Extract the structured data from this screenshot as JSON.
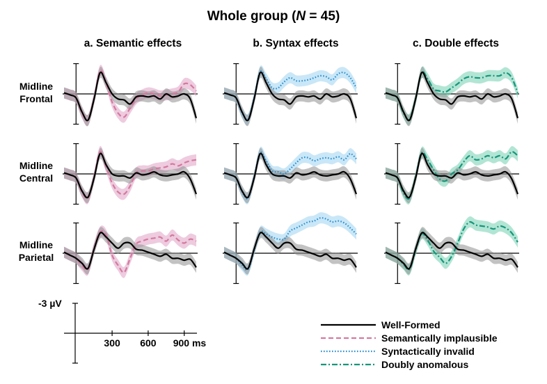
{
  "figure": {
    "title_main": "Whole group (",
    "title_italic": "N",
    "title_rest": " = 45)"
  },
  "chart_data": {
    "type": "line",
    "title": "Whole group (N = 45)",
    "x_unit": "ms",
    "y_scale_label": "-3 µV",
    "x_ticks": [
      "300",
      "600",
      "900 ms"
    ],
    "x_tick_values": [
      300,
      600,
      900
    ],
    "x_range": [
      -100,
      1200
    ],
    "y_range_uv": [
      -3,
      3
    ],
    "negative_up": true,
    "columns": [
      {
        "label": "a. Semantic effects",
        "condition": "semantic"
      },
      {
        "label": "b. Syntax effects",
        "condition": "syntax"
      },
      {
        "label": "c. Double effects",
        "condition": "double"
      }
    ],
    "rows": [
      {
        "label_line1": "Midline",
        "label_line2": "Frontal",
        "site": "frontal"
      },
      {
        "label_line1": "Midline",
        "label_line2": "Central",
        "site": "central"
      },
      {
        "label_line1": "Midline",
        "label_line2": "Parietal",
        "site": "parietal"
      }
    ],
    "legend": [
      {
        "label": "Well-Formed",
        "color": "#000000",
        "style": "solid"
      },
      {
        "label": "Semantically implausible",
        "color": "#d4799e",
        "style": "dashed"
      },
      {
        "label": "Syntactically invalid",
        "color": "#2a8fd0",
        "style": "dotted"
      },
      {
        "label": "Doubly anomalous",
        "color": "#16967a",
        "style": "dashdot"
      }
    ],
    "band_colors": {
      "wellformed": "#8f8f8f",
      "semantic": "#e2a9c9",
      "syntax": "#a5d7f2",
      "double": "#7fd3b8"
    },
    "waveform_x_ms": [
      -100,
      -50,
      0,
      50,
      100,
      150,
      200,
      250,
      300,
      350,
      400,
      450,
      500,
      550,
      600,
      650,
      700,
      750,
      800,
      850,
      900,
      950,
      1000
    ],
    "waveforms_uv": {
      "frontal": {
        "wellformed": [
          0.1,
          -0.1,
          -0.4,
          -1.8,
          -2.6,
          -0.5,
          2.1,
          1.1,
          0.0,
          -0.5,
          -0.6,
          -1.0,
          -0.3,
          -0.2,
          -0.3,
          -0.2,
          -0.5,
          0.0,
          -0.3,
          -0.2,
          0.0,
          -0.5,
          -2.4
        ],
        "semantic": [
          0.1,
          -0.1,
          -0.4,
          -1.9,
          -2.6,
          -0.4,
          2.3,
          1.1,
          -0.8,
          -1.9,
          -2.3,
          -1.4,
          -0.5,
          -0.1,
          0.1,
          0.0,
          -0.2,
          -0.1,
          0.0,
          0.2,
          1.0,
          0.9,
          0.3
        ],
        "syntax": [
          0.1,
          -0.1,
          -0.4,
          -1.9,
          -2.5,
          -0.4,
          2.2,
          1.5,
          0.6,
          0.6,
          1.2,
          1.6,
          1.3,
          1.3,
          1.4,
          1.6,
          1.8,
          1.7,
          1.4,
          2.0,
          2.1,
          1.6,
          0.6
        ],
        "double": [
          0.1,
          -0.1,
          -0.4,
          -1.9,
          -2.5,
          -0.5,
          2.1,
          1.5,
          0.5,
          0.3,
          0.2,
          0.6,
          1.0,
          1.5,
          1.7,
          1.6,
          1.6,
          1.8,
          1.8,
          1.8,
          2.1,
          1.6,
          0.1
        ]
      },
      "central": {
        "wellformed": [
          0.1,
          -0.1,
          -0.4,
          -1.7,
          -2.3,
          -0.4,
          2.0,
          0.9,
          0.0,
          -0.2,
          -0.2,
          -0.4,
          0.1,
          -0.1,
          0.0,
          0.2,
          -0.1,
          -0.2,
          -0.1,
          0.0,
          0.2,
          -0.5,
          -2.0
        ],
        "semantic": [
          0.1,
          -0.1,
          -0.4,
          -1.8,
          -2.4,
          -0.3,
          2.2,
          0.7,
          -0.9,
          -1.8,
          -2.0,
          -1.2,
          0.1,
          0.3,
          0.3,
          0.5,
          0.6,
          0.7,
          1.0,
          0.8,
          1.1,
          1.3,
          1.4
        ],
        "syntax": [
          0.1,
          -0.1,
          -0.4,
          -1.8,
          -2.4,
          -0.3,
          2.1,
          1.3,
          0.3,
          0.2,
          0.0,
          0.5,
          1.1,
          1.6,
          1.6,
          1.3,
          1.5,
          1.6,
          1.5,
          1.7,
          1.4,
          2.0,
          1.5
        ],
        "double": [
          0.1,
          -0.1,
          -0.4,
          -1.9,
          -2.4,
          -0.3,
          2.1,
          1.4,
          0.4,
          -0.5,
          -0.7,
          0.0,
          0.4,
          1.2,
          1.8,
          1.4,
          1.5,
          1.8,
          1.6,
          1.8,
          1.5,
          2.2,
          1.8
        ]
      },
      "parietal": {
        "wellformed": [
          0.1,
          -0.2,
          -0.5,
          -1.0,
          -1.5,
          0.4,
          2.0,
          1.6,
          1.0,
          0.5,
          1.0,
          1.0,
          0.4,
          0.3,
          0.1,
          -0.1,
          -0.3,
          -0.1,
          -0.5,
          -0.5,
          -0.7,
          -0.6,
          -1.4
        ],
        "semantic": [
          0.1,
          -0.2,
          -0.5,
          -1.2,
          -1.6,
          0.5,
          2.1,
          1.8,
          -0.2,
          -1.2,
          -1.9,
          -0.5,
          0.9,
          1.2,
          1.4,
          1.5,
          1.6,
          1.2,
          1.8,
          1.3,
          1.0,
          1.4,
          1.2
        ],
        "syntax": [
          0.1,
          -0.2,
          -0.5,
          -1.2,
          -1.6,
          0.3,
          2.1,
          1.9,
          1.6,
          1.4,
          1.4,
          2.2,
          2.5,
          2.8,
          3.1,
          3.2,
          3.5,
          3.4,
          3.1,
          3.2,
          3.0,
          2.5,
          1.9
        ],
        "double": [
          0.1,
          -0.2,
          -0.5,
          -1.1,
          -1.6,
          0.3,
          1.9,
          1.3,
          0.2,
          -0.4,
          -1.0,
          -0.3,
          1.0,
          2.4,
          3.1,
          2.8,
          2.7,
          2.6,
          2.4,
          2.7,
          2.5,
          2.0,
          1.1
        ]
      }
    },
    "band_halfwidth_uv": 0.55
  }
}
